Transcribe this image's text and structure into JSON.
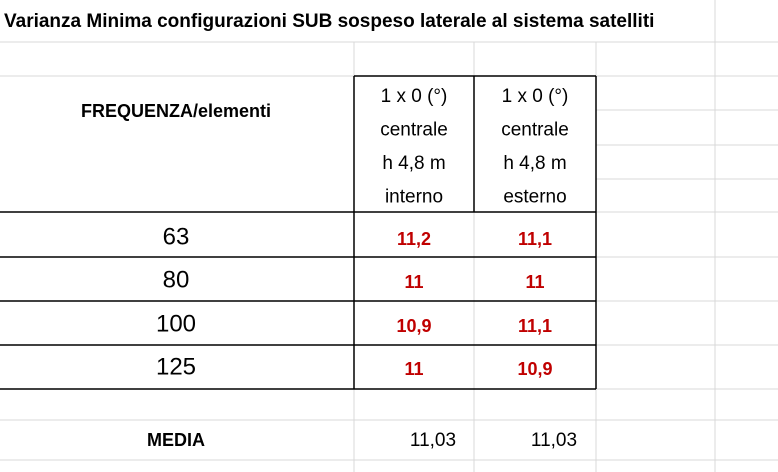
{
  "title": "Varianza Minima configurazioni SUB sospeso laterale al sistema satelliti",
  "table": {
    "header": {
      "label": "FREQUENZA/elementi",
      "columns": [
        [
          "1 x 0 (°)",
          "centrale",
          "h 4,8 m",
          "interno"
        ],
        [
          "1 x 0 (°)",
          "centrale",
          "h 4,8 m",
          "esterno"
        ]
      ]
    },
    "rows": [
      [
        "63",
        "11,2",
        "11,1"
      ],
      [
        "80",
        "11",
        "11"
      ],
      [
        "100",
        "10,9",
        "11,1"
      ],
      [
        "125",
        "11",
        "10,9"
      ]
    ],
    "footer": [
      "MEDIA",
      "11,03",
      "11,03"
    ]
  }
}
